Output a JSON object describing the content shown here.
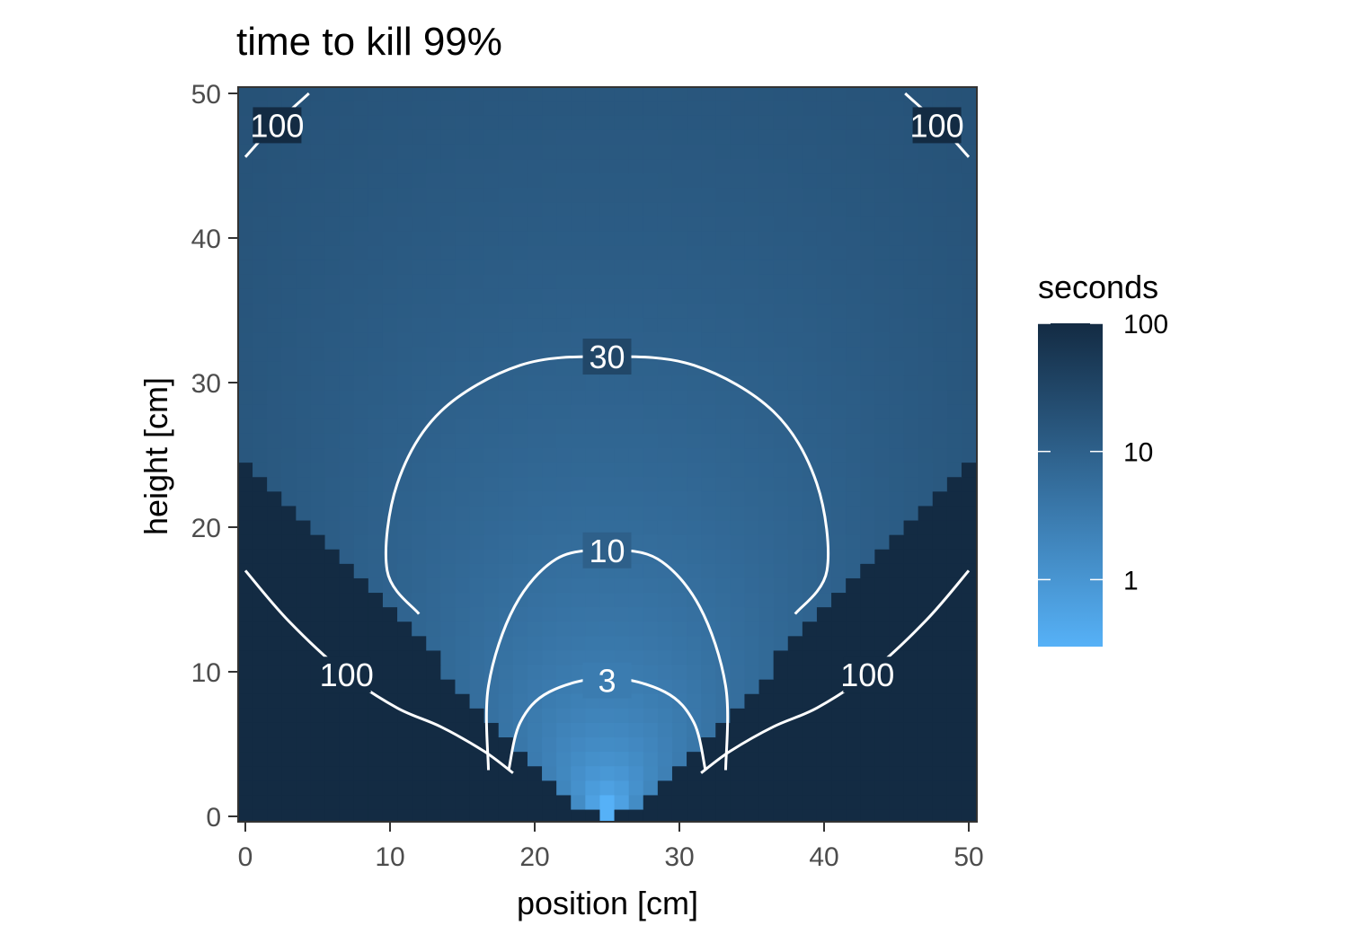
{
  "chart_data": {
    "type": "heatmap",
    "title": "time to kill 99%",
    "xlabel": "position [cm]",
    "ylabel": "height [cm]",
    "xlim": [
      0,
      50
    ],
    "ylim": [
      0,
      50
    ],
    "x_ticks": [
      0,
      10,
      20,
      30,
      40,
      50
    ],
    "y_ticks": [
      0,
      10,
      20,
      30,
      40,
      50
    ],
    "grid": false,
    "source": {
      "x": 25,
      "y": 0
    },
    "clip_boundary": {
      "description": "cells outside the wedge are clipped to the 100 s colour",
      "note_value": 100
    },
    "legend": {
      "title": "seconds",
      "scale": "log10",
      "range": [
        0.3,
        100
      ],
      "ticks": [
        {
          "value": 100,
          "label": "100"
        },
        {
          "value": 10,
          "label": "10"
        },
        {
          "value": 1,
          "label": "1"
        }
      ],
      "colors": {
        "low": "#56B1F7",
        "high": "#132B43"
      },
      "placement": "right"
    },
    "contours": [
      {
        "level": 3,
        "label": "3",
        "points": [
          [
            18.2,
            3.2
          ],
          [
            19.0,
            6.5
          ],
          [
            21.0,
            8.6
          ],
          [
            25.0,
            9.6
          ],
          [
            29.0,
            8.6
          ],
          [
            31.0,
            6.5
          ],
          [
            31.8,
            3.2
          ]
        ],
        "label_at": [
          25.0,
          9.4
        ]
      },
      {
        "level": 10,
        "label": "10",
        "points": [
          [
            16.8,
            3.2
          ],
          [
            16.8,
            9.0
          ],
          [
            18.6,
            14.5
          ],
          [
            21.5,
            17.8
          ],
          [
            25.0,
            18.4
          ],
          [
            28.5,
            17.8
          ],
          [
            31.4,
            14.5
          ],
          [
            33.2,
            9.0
          ],
          [
            33.2,
            3.2
          ]
        ],
        "label_at": [
          25.0,
          18.4
        ]
      },
      {
        "level": 30,
        "label": "30",
        "points": [
          [
            12.0,
            14.0
          ],
          [
            9.8,
            17.0
          ],
          [
            10.5,
            23.0
          ],
          [
            13.5,
            28.0
          ],
          [
            19.0,
            31.2
          ],
          [
            25.0,
            31.8
          ],
          [
            31.0,
            31.2
          ],
          [
            36.5,
            28.0
          ],
          [
            39.5,
            23.0
          ],
          [
            40.2,
            17.0
          ],
          [
            38.0,
            14.0
          ]
        ],
        "label_at": [
          25.0,
          31.8
        ]
      },
      {
        "level": 100,
        "label": "100",
        "points": [
          [
            0.0,
            17.0
          ],
          [
            3.0,
            13.5
          ],
          [
            7.0,
            9.8
          ],
          [
            10.5,
            7.5
          ],
          [
            13.5,
            6.2
          ],
          [
            16.5,
            4.5
          ],
          [
            18.5,
            3.0
          ]
        ],
        "label_at": [
          7.0,
          9.8
        ]
      },
      {
        "level": 100,
        "label": "100",
        "points": [
          [
            50.0,
            17.0
          ],
          [
            47.0,
            13.5
          ],
          [
            43.0,
            9.8
          ],
          [
            39.5,
            7.5
          ],
          [
            36.5,
            6.2
          ],
          [
            33.5,
            4.5
          ],
          [
            31.5,
            3.0
          ]
        ],
        "label_at": [
          43.0,
          9.8
        ]
      },
      {
        "level": 100,
        "label": "100",
        "points": [
          [
            0.0,
            45.6
          ],
          [
            2.0,
            47.8
          ],
          [
            4.4,
            50.0
          ]
        ],
        "label_at": [
          2.2,
          47.8
        ]
      },
      {
        "level": 100,
        "label": "100",
        "points": [
          [
            45.6,
            50.0
          ],
          [
            48.0,
            47.8
          ],
          [
            50.0,
            45.6
          ]
        ],
        "label_at": [
          47.8,
          47.8
        ]
      }
    ]
  }
}
